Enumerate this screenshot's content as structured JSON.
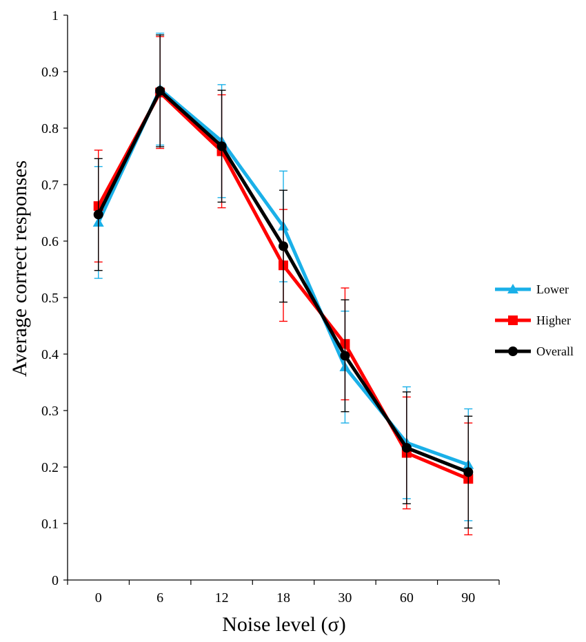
{
  "chart_data": {
    "type": "line",
    "title": "",
    "xlabel": "Noise level (σ)",
    "ylabel": "Average correct responses",
    "categories": [
      "0",
      "6",
      "12",
      "18",
      "30",
      "60",
      "90"
    ],
    "ylim": [
      0,
      1
    ],
    "yticks": [
      "0",
      "0.1",
      "0.2",
      "0.3",
      "0.4",
      "0.5",
      "0.6",
      "0.7",
      "0.8",
      "0.9",
      "1"
    ],
    "grid": false,
    "legend_position": "right",
    "series": [
      {
        "name": "Lower",
        "color": "#1ab0e8",
        "marker": "triangle",
        "values": [
          0.633,
          0.869,
          0.777,
          0.626,
          0.377,
          0.243,
          0.204
        ],
        "errors": [
          0.099,
          0.099,
          0.1,
          0.098,
          0.099,
          0.099,
          0.099
        ]
      },
      {
        "name": "Higher",
        "color": "#ff0000",
        "marker": "square",
        "values": [
          0.662,
          0.863,
          0.759,
          0.557,
          0.418,
          0.225,
          0.179
        ],
        "errors": [
          0.099,
          0.099,
          0.1,
          0.099,
          0.099,
          0.099,
          0.099
        ]
      },
      {
        "name": "Overall",
        "color": "#000000",
        "marker": "circle",
        "values": [
          0.647,
          0.866,
          0.768,
          0.591,
          0.397,
          0.234,
          0.191
        ],
        "errors": [
          0.099,
          0.099,
          0.099,
          0.099,
          0.099,
          0.099,
          0.099
        ]
      }
    ]
  }
}
